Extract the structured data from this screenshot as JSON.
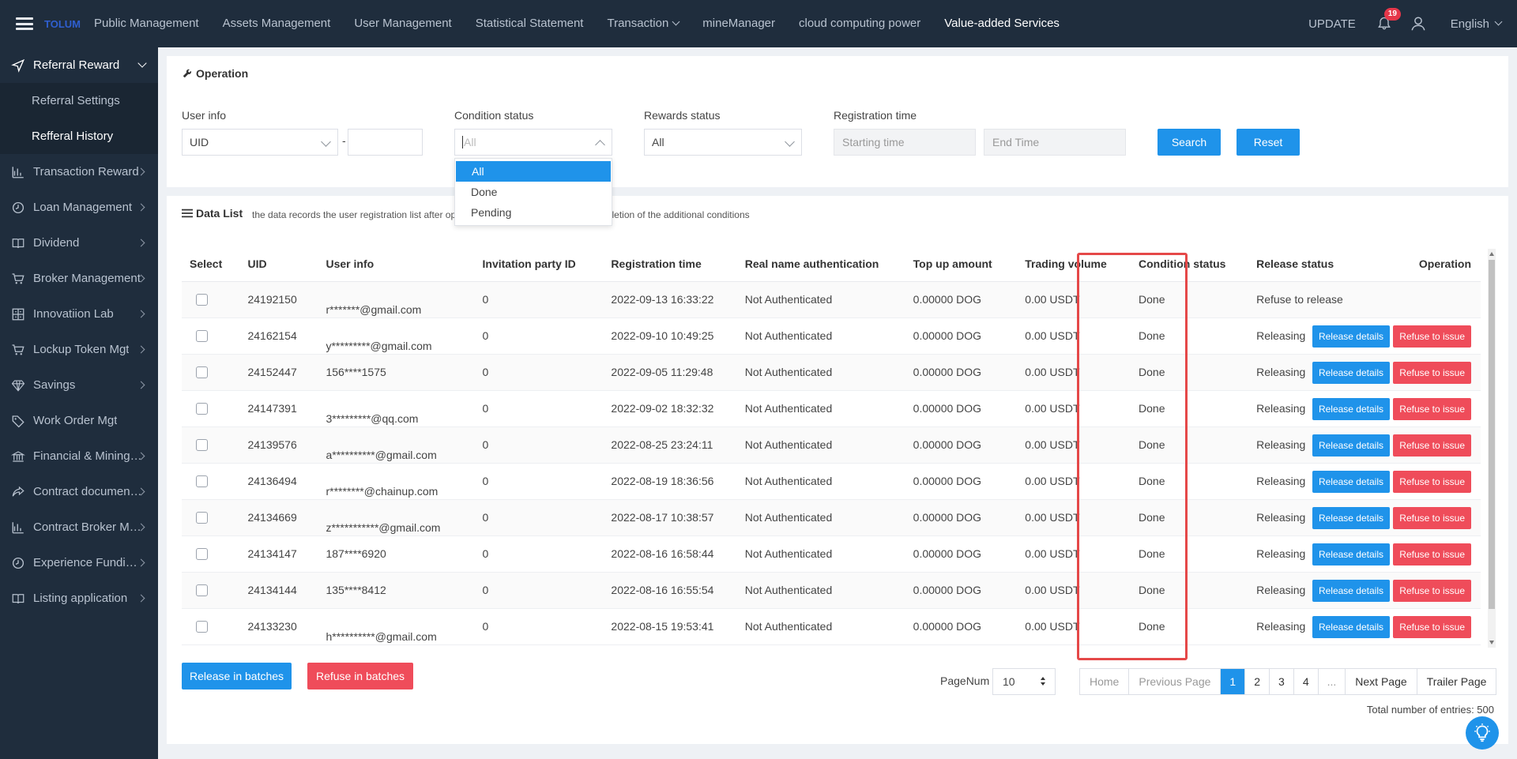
{
  "topnav": {
    "logo": "TOLUM",
    "items": [
      {
        "label": "Public Management"
      },
      {
        "label": "Assets Management"
      },
      {
        "label": "User Management"
      },
      {
        "label": "Statistical Statement"
      },
      {
        "label": "Transaction"
      },
      {
        "label": "mineManager"
      },
      {
        "label": "cloud computing power"
      },
      {
        "label": "Value-added Services"
      }
    ],
    "active": "Value-added Services",
    "update": "UPDATE",
    "notifications": "19",
    "language": "English"
  },
  "sidebar": {
    "open_group": {
      "label": "Referral Reward",
      "icon": "send-icon"
    },
    "sub_items": [
      {
        "label": "Referral Settings"
      },
      {
        "label": "Refferal History"
      }
    ],
    "items": [
      {
        "label": "Transaction Reward",
        "icon": "bar-chart-icon"
      },
      {
        "label": "Loan Management",
        "icon": "clock-icon"
      },
      {
        "label": "Dividend",
        "icon": "book-icon"
      },
      {
        "label": "Broker Management",
        "icon": "cart-icon"
      },
      {
        "label": "Innovatiion Lab",
        "icon": "grid-icon"
      },
      {
        "label": "Lockup Token Mgt",
        "icon": "cart-icon"
      },
      {
        "label": "Savings",
        "icon": "diamond-icon"
      },
      {
        "label": "Work Order Mgt",
        "icon": "tag-icon"
      },
      {
        "label": "Financial & Mining ...",
        "icon": "bank-icon"
      },
      {
        "label": "Contract document...",
        "icon": "share-icon"
      },
      {
        "label": "Contract Broker Mg...",
        "icon": "bar-chart-icon"
      },
      {
        "label": "Experience Funding...",
        "icon": "clock-icon"
      },
      {
        "label": "Listing application",
        "icon": "book-icon"
      }
    ]
  },
  "operation": {
    "title": "Operation",
    "user_info_label": "User info",
    "user_info_select": "UID",
    "user_info_dash": "-",
    "condition_label": "Condition status",
    "condition_placeholder": "All",
    "rewards_label": "Rewards status",
    "rewards_value": "All",
    "registration_label": "Registration time",
    "start_placeholder": "Starting time",
    "end_placeholder": "End Time",
    "search": "Search",
    "reset": "Reset"
  },
  "condition_dropdown": {
    "options": [
      "All",
      "Done",
      "Pending"
    ],
    "selected": "All"
  },
  "datalist": {
    "title": "Data List",
    "note_left": "the data records the user registration list after op",
    "note_right": "e completion of the additional conditions",
    "columns": [
      "Select",
      "UID",
      "User info",
      "Invitation party ID",
      "Registration time",
      "Real name authentication",
      "Top up amount",
      "Trading volume",
      "Condition status",
      "Release status",
      "Operation"
    ],
    "rows": [
      {
        "uid": "24192150",
        "user": "r*******@gmail.com",
        "inv": "0",
        "reg": "2022-09-13 16:33:22",
        "auth": "Not Authenticated",
        "topup": "0.00000 DOG",
        "trade": "0.00 USDT",
        "cond": "Done",
        "release": "Refuse to release",
        "ops": false
      },
      {
        "uid": "24162154",
        "user": "y*********@gmail.com",
        "inv": "0",
        "reg": "2022-09-10 10:49:25",
        "auth": "Not Authenticated",
        "topup": "0.00000 DOG",
        "trade": "0.00 USDT",
        "cond": "Done",
        "release": "Releasing",
        "ops": true
      },
      {
        "uid": "24152447",
        "user": "156****1575",
        "inv": "0",
        "reg": "2022-09-05 11:29:48",
        "auth": "Not Authenticated",
        "topup": "0.00000 DOG",
        "trade": "0.00 USDT",
        "cond": "Done",
        "release": "Releasing",
        "ops": true
      },
      {
        "uid": "24147391",
        "user": "3*********@qq.com",
        "inv": "0",
        "reg": "2022-09-02 18:32:32",
        "auth": "Not Authenticated",
        "topup": "0.00000 DOG",
        "trade": "0.00 USDT",
        "cond": "Done",
        "release": "Releasing",
        "ops": true
      },
      {
        "uid": "24139576",
        "user": "a**********@gmail.com",
        "inv": "0",
        "reg": "2022-08-25 23:24:11",
        "auth": "Not Authenticated",
        "topup": "0.00000 DOG",
        "trade": "0.00 USDT",
        "cond": "Done",
        "release": "Releasing",
        "ops": true
      },
      {
        "uid": "24136494",
        "user": "r********@chainup.com",
        "inv": "0",
        "reg": "2022-08-19 18:36:56",
        "auth": "Not Authenticated",
        "topup": "0.00000 DOG",
        "trade": "0.00 USDT",
        "cond": "Done",
        "release": "Releasing",
        "ops": true
      },
      {
        "uid": "24134669",
        "user": "z***********@gmail.com",
        "inv": "0",
        "reg": "2022-08-17 10:38:57",
        "auth": "Not Authenticated",
        "topup": "0.00000 DOG",
        "trade": "0.00 USDT",
        "cond": "Done",
        "release": "Releasing",
        "ops": true
      },
      {
        "uid": "24134147",
        "user": "187****6920",
        "inv": "0",
        "reg": "2022-08-16 16:58:44",
        "auth": "Not Authenticated",
        "topup": "0.00000 DOG",
        "trade": "0.00 USDT",
        "cond": "Done",
        "release": "Releasing",
        "ops": true
      },
      {
        "uid": "24134144",
        "user": "135****8412",
        "inv": "0",
        "reg": "2022-08-16 16:55:54",
        "auth": "Not Authenticated",
        "topup": "0.00000 DOG",
        "trade": "0.00 USDT",
        "cond": "Done",
        "release": "Releasing",
        "ops": true
      },
      {
        "uid": "24133230",
        "user": "h**********@gmail.com",
        "inv": "0",
        "reg": "2022-08-15 19:53:41",
        "auth": "Not Authenticated",
        "topup": "0.00000 DOG",
        "trade": "0.00 USDT",
        "cond": "Done",
        "release": "Releasing",
        "ops": true
      }
    ],
    "release_details": "Release details",
    "refuse_issue": "Refuse to issue",
    "release_batches": "Release in batches",
    "refuse_batches": "Refuse in batches"
  },
  "pagination": {
    "label": "PageNum",
    "page_size": "10",
    "home": "Home",
    "prev": "Previous Page",
    "pages": [
      "1",
      "2",
      "3",
      "4",
      "..."
    ],
    "current": "1",
    "next": "Next Page",
    "trailer": "Trailer Page",
    "total": "Total number of entries:  500"
  },
  "colors": {
    "nav_bg": "#1f2d3d",
    "primary": "#1f93ea",
    "danger": "#ef4c5a",
    "highlight": "#e54848"
  }
}
